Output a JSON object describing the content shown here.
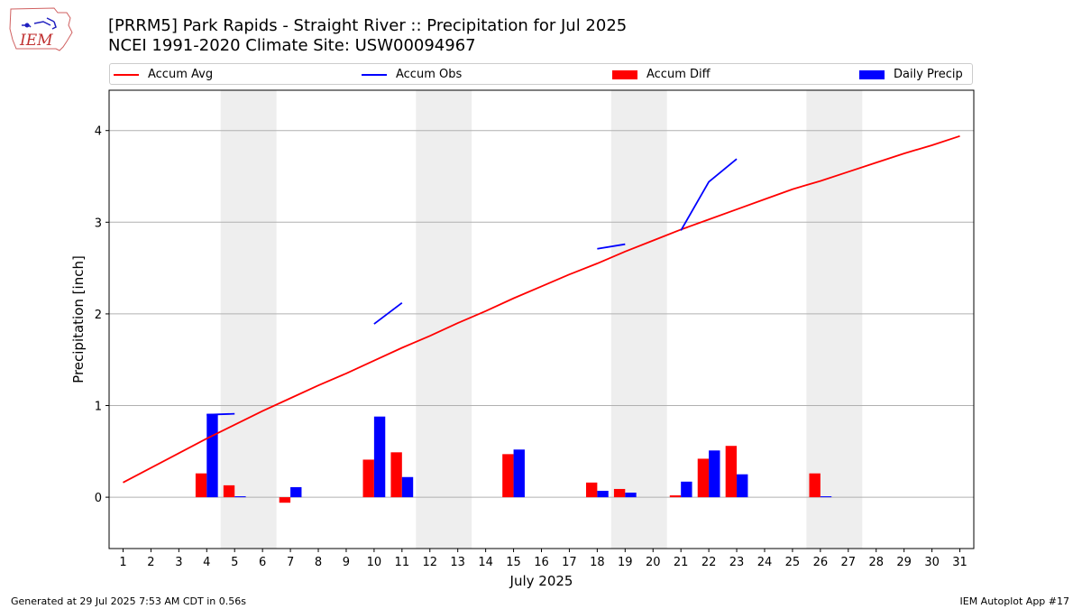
{
  "header": {
    "title_line1": "[PRRM5] Park Rapids - Straight River :: Precipitation for Jul 2025",
    "title_line2": "NCEI 1991-2020 Climate Site: USW00094967",
    "logo_text": "IEM"
  },
  "legend": {
    "items": [
      {
        "label": "Accum Avg",
        "kind": "line",
        "color": "#ff0000"
      },
      {
        "label": "Accum Obs",
        "kind": "line",
        "color": "#0000ff"
      },
      {
        "label": "Accum Diff",
        "kind": "box",
        "color": "#ff0000"
      },
      {
        "label": "Daily Precip",
        "kind": "box",
        "color": "#0000ff"
      }
    ]
  },
  "footer": {
    "left": "Generated at 29 Jul 2025 7:53 AM CDT in 0.56s",
    "right": "IEM Autoplot App #17"
  },
  "chart_data": {
    "type": "bar",
    "xlabel": "July 2025",
    "ylabel": "Precipitation [inch]",
    "ylim": [
      -0.56,
      4.44
    ],
    "xlim": [
      0.5,
      31.5
    ],
    "yticks": [
      0,
      1,
      2,
      3,
      4
    ],
    "grid": "y",
    "legend_position": "top",
    "weekend_shading": [
      [
        4.5,
        6.5
      ],
      [
        11.5,
        13.5
      ],
      [
        18.5,
        20.5
      ],
      [
        25.5,
        27.5
      ]
    ],
    "categories": [
      1,
      2,
      3,
      4,
      5,
      6,
      7,
      8,
      9,
      10,
      11,
      12,
      13,
      14,
      15,
      16,
      17,
      18,
      19,
      20,
      21,
      22,
      23,
      24,
      25,
      26,
      27,
      28,
      29,
      30,
      31
    ],
    "series": [
      {
        "name": "Accum Avg",
        "kind": "line",
        "color": "#ff0000",
        "values": [
          0.16,
          0.32,
          0.48,
          0.64,
          0.79,
          0.94,
          1.08,
          1.22,
          1.35,
          1.49,
          1.63,
          1.76,
          1.9,
          2.03,
          2.17,
          2.3,
          2.43,
          2.55,
          2.68,
          2.8,
          2.92,
          3.03,
          3.14,
          3.25,
          3.36,
          3.45,
          3.55,
          3.65,
          3.75,
          3.84,
          3.94
        ]
      },
      {
        "name": "Accum Obs",
        "kind": "line",
        "color": "#0000ff",
        "segments": [
          [
            [
              4,
              0.9
            ],
            [
              5,
              0.91
            ]
          ],
          [
            [
              10,
              1.89
            ],
            [
              11,
              2.12
            ]
          ],
          [
            [
              18,
              2.71
            ],
            [
              19,
              2.76
            ]
          ],
          [
            [
              21,
              2.91
            ],
            [
              22,
              3.44
            ],
            [
              23,
              3.69
            ]
          ]
        ]
      },
      {
        "name": "Accum Diff",
        "kind": "bar",
        "color": "#ff0000",
        "points": [
          [
            4,
            0.26
          ],
          [
            5,
            0.13
          ],
          [
            7,
            -0.06
          ],
          [
            10,
            0.41
          ],
          [
            11,
            0.49
          ],
          [
            15,
            0.47
          ],
          [
            18,
            0.16
          ],
          [
            19,
            0.09
          ],
          [
            21,
            0.02
          ],
          [
            22,
            0.42
          ],
          [
            23,
            0.56
          ],
          [
            26,
            0.26
          ]
        ]
      },
      {
        "name": "Daily Precip",
        "kind": "bar",
        "color": "#0000ff",
        "points": [
          [
            4,
            0.91
          ],
          [
            5,
            0.01
          ],
          [
            7,
            0.11
          ],
          [
            10,
            0.88
          ],
          [
            11,
            0.22
          ],
          [
            15,
            0.52
          ],
          [
            18,
            0.07
          ],
          [
            19,
            0.05
          ],
          [
            21,
            0.17
          ],
          [
            22,
            0.51
          ],
          [
            23,
            0.25
          ],
          [
            26,
            0.01
          ]
        ]
      }
    ]
  }
}
